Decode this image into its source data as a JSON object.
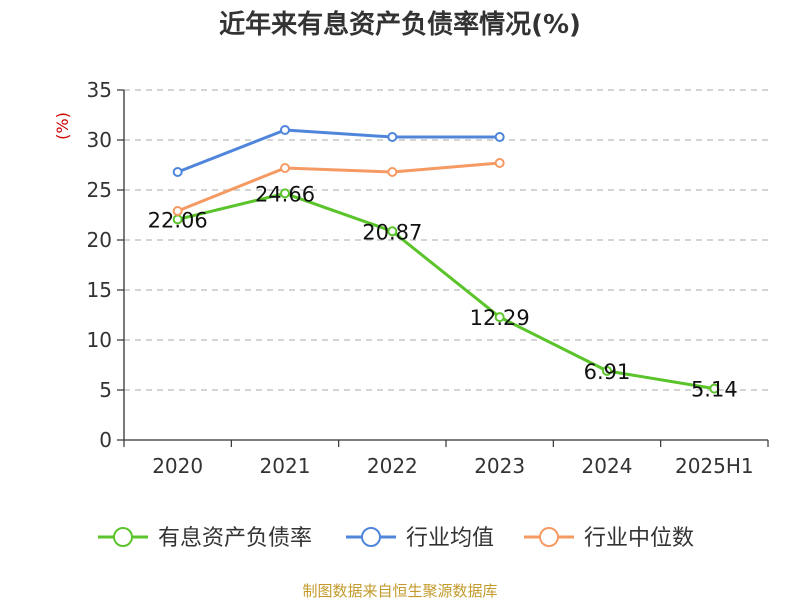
{
  "chart_data": {
    "type": "line",
    "title": "近年来有息资产负债率情况(%)",
    "ylabel": "(%)",
    "xlabel": "",
    "categories": [
      "2020",
      "2021",
      "2022",
      "2023",
      "2024",
      "2025H1"
    ],
    "ylim": [
      0,
      35
    ],
    "yticks": [
      0,
      5,
      10,
      15,
      20,
      25,
      30,
      35
    ],
    "grid": "horizontal dashed",
    "legend_position": "bottom",
    "series": [
      {
        "name": "有息资产负债率",
        "color": "#5ac42a",
        "values": [
          22.06,
          24.66,
          20.87,
          12.29,
          6.91,
          5.14
        ],
        "labels": [
          "22.06",
          "24.66",
          "20.87",
          "12.29",
          "6.91",
          "5.14"
        ]
      },
      {
        "name": "行业均值",
        "color": "#4f86db",
        "values": [
          26.8,
          31.0,
          30.3,
          30.3,
          null,
          null
        ]
      },
      {
        "name": "行业中位数",
        "color": "#f59a62",
        "values": [
          22.9,
          27.2,
          26.8,
          27.7,
          null,
          null
        ]
      }
    ],
    "source": "制图数据来自恒生聚源数据库"
  }
}
